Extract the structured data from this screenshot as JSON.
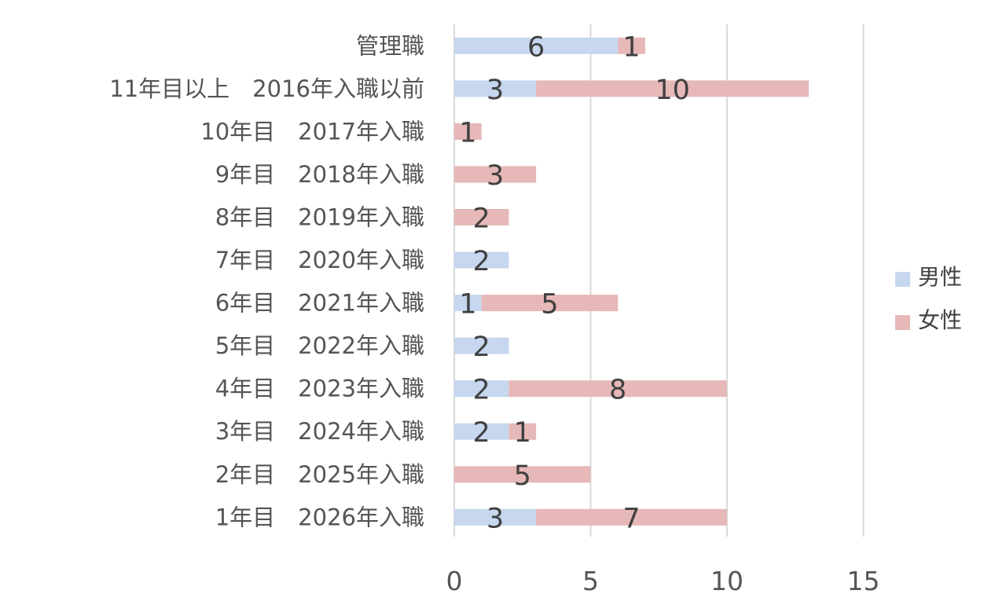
{
  "chart_data": {
    "type": "bar",
    "orientation": "horizontal",
    "stacked": true,
    "categories": [
      "管理職",
      "11年目以上　2016年入職以前",
      "10年目　2017年入職",
      "9年目　2018年入職",
      "8年目　2019年入職",
      "7年目　2020年入職",
      "6年目　2021年入職",
      "5年目　2022年入職",
      "4年目　2023年入職",
      "3年目　2024年入職",
      "2年目　2025年入職",
      "1年目　2026年入職"
    ],
    "series": [
      {
        "name": "男性",
        "color": "#c6d7ef",
        "values": [
          6,
          3,
          0,
          0,
          0,
          2,
          1,
          2,
          2,
          2,
          0,
          3
        ]
      },
      {
        "name": "女性",
        "color": "#e6b8b7",
        "values": [
          1,
          10,
          1,
          3,
          2,
          0,
          5,
          0,
          8,
          1,
          5,
          7
        ]
      }
    ],
    "xlim": [
      0,
      15
    ],
    "xticks": [
      0,
      5,
      10,
      15
    ],
    "tick_labels": [
      "0",
      "5",
      "10",
      "15"
    ],
    "grid": true,
    "legend_position": "right",
    "data_labels": true
  }
}
